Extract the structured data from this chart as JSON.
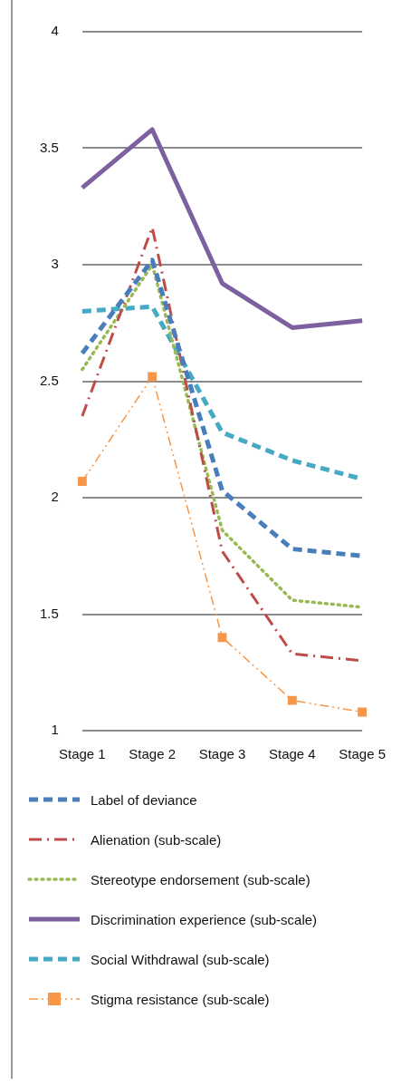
{
  "chart_data": {
    "type": "line",
    "categories": [
      "Stage 1",
      "Stage 2",
      "Stage 3",
      "Stage 4",
      "Stage 5"
    ],
    "ylim": [
      1,
      4
    ],
    "yticks": [
      1,
      1.5,
      2,
      2.5,
      3,
      3.5,
      4
    ],
    "grid": "y",
    "legend": "bottom",
    "series": [
      {
        "name": "Label of deviance",
        "color": "#4a7ebb",
        "line_style": "dashed",
        "marker": "none",
        "values": [
          2.62,
          3.02,
          2.03,
          1.78,
          1.75
        ]
      },
      {
        "name": "Alienation (sub-scale)",
        "color": "#be4b48",
        "line_style": "dashdot",
        "marker": "none",
        "values": [
          2.35,
          3.16,
          1.77,
          1.33,
          1.3
        ]
      },
      {
        "name": "Stereotype endorsement (sub-scale)",
        "color": "#98b954",
        "line_style": "dotted",
        "marker": "none",
        "values": [
          2.55,
          3.0,
          1.86,
          1.56,
          1.53
        ]
      },
      {
        "name": "Discrimination experience (sub-scale)",
        "color": "#7d60a0",
        "line_style": "solid",
        "marker": "none",
        "values": [
          3.33,
          3.58,
          2.92,
          2.73,
          2.76
        ]
      },
      {
        "name": "Social Withdrawal (sub-scale)",
        "color": "#46aac5",
        "line_style": "dashed",
        "marker": "none",
        "values": [
          2.8,
          2.82,
          2.28,
          2.16,
          2.08
        ]
      },
      {
        "name": "Stigma resistance (sub-scale)",
        "color": "#f79646",
        "line_style": "dashdotdot",
        "marker": "square",
        "values": [
          2.07,
          2.52,
          1.4,
          1.13,
          1.08
        ]
      }
    ]
  }
}
